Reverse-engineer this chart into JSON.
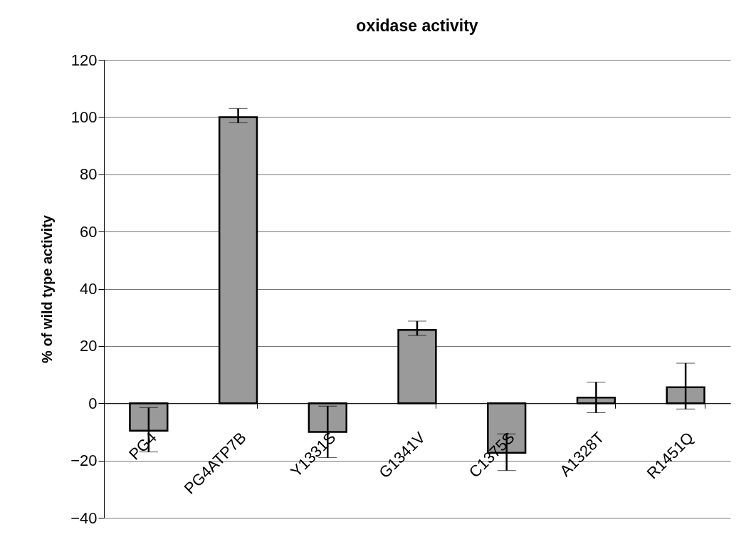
{
  "chart_data": {
    "type": "bar",
    "title": "oxidase activity",
    "ylabel": "% of wild type activity",
    "categories": [
      "PG4",
      "PG4ATP7B",
      "Y1331S",
      "G1341V",
      "C1375S",
      "A1328T",
      "R1451Q"
    ],
    "values": [
      -9.6,
      100,
      -10,
      25.6,
      -17.3,
      2,
      5.6
    ],
    "errors": [
      [
        -17,
        -1.5
      ],
      [
        98,
        103
      ],
      [
        -19,
        -1
      ],
      [
        23.7,
        28.7
      ],
      [
        -23.5,
        -10.7
      ],
      [
        -3.3,
        7.4
      ],
      [
        -2,
        14
      ]
    ],
    "color": "#9a9a9a",
    "ylim": [
      -40,
      120
    ],
    "yticks": [
      -40,
      -20,
      0,
      20,
      40,
      60,
      80,
      100,
      120
    ],
    "grid": "y"
  }
}
